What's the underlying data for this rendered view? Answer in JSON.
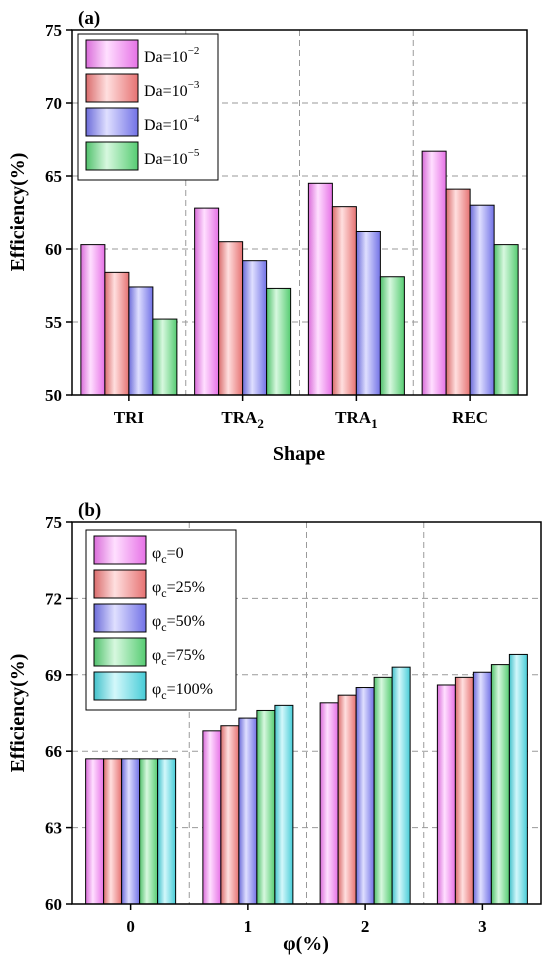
{
  "chart_data": [
    {
      "type": "bar",
      "panel_label": "(a)",
      "categories": [
        "TRI",
        "TRA2",
        "TRA1",
        "REC"
      ],
      "category_labels": [
        {
          "base": "TRI",
          "sub": ""
        },
        {
          "base": "TRA",
          "sub": "2"
        },
        {
          "base": "TRA",
          "sub": "1"
        },
        {
          "base": "REC",
          "sub": ""
        }
      ],
      "series": [
        {
          "name": "Da=10^-2",
          "label_base": "Da=10",
          "label_exp": "−2",
          "color": "#ff7fff",
          "values": [
            60.3,
            62.8,
            64.5,
            66.7
          ]
        },
        {
          "name": "Da=10^-3",
          "label_base": "Da=10",
          "label_exp": "−3",
          "color": "#ff7f7f",
          "values": [
            58.4,
            60.5,
            62.9,
            64.1
          ]
        },
        {
          "name": "Da=10^-4",
          "label_base": "Da=10",
          "label_exp": "−4",
          "color": "#7f7fff",
          "values": [
            57.4,
            59.2,
            61.2,
            63.0
          ]
        },
        {
          "name": "Da=10^-5",
          "label_base": "Da=10",
          "label_exp": "−5",
          "color": "#5fe37f",
          "values": [
            55.2,
            57.3,
            58.1,
            60.3
          ]
        }
      ],
      "xlabel": "Shape",
      "ylabel": "Efficiency(%)",
      "ylim": [
        50,
        75
      ],
      "yticks": [
        50,
        55,
        60,
        65,
        70,
        75
      ],
      "grid": true,
      "legend_position": "top-left"
    },
    {
      "type": "bar",
      "panel_label": "(b)",
      "categories": [
        "0",
        "1",
        "2",
        "3"
      ],
      "category_labels": [
        {
          "base": "0",
          "sub": ""
        },
        {
          "base": "1",
          "sub": ""
        },
        {
          "base": "2",
          "sub": ""
        },
        {
          "base": "3",
          "sub": ""
        }
      ],
      "series": [
        {
          "name": "φc=0",
          "label_base": "φ",
          "label_sub": "c",
          "label_rest": "=0",
          "color": "#ff7fff",
          "values": [
            65.7,
            66.8,
            67.9,
            68.6
          ]
        },
        {
          "name": "φc=25%",
          "label_base": "φ",
          "label_sub": "c",
          "label_rest": "=25%",
          "color": "#ff7f7f",
          "values": [
            65.7,
            67.0,
            68.2,
            68.9
          ]
        },
        {
          "name": "φc=50%",
          "label_base": "φ",
          "label_sub": "c",
          "label_rest": "=50%",
          "color": "#7f7fff",
          "values": [
            65.7,
            67.3,
            68.5,
            69.1
          ]
        },
        {
          "name": "φc=75%",
          "label_base": "φ",
          "label_sub": "c",
          "label_rest": "=75%",
          "color": "#5fe37f",
          "values": [
            65.7,
            67.6,
            68.9,
            69.4
          ]
        },
        {
          "name": "φc=100%",
          "label_base": "φ",
          "label_sub": "c",
          "label_rest": "=100%",
          "color": "#4fe3ef",
          "values": [
            65.7,
            67.8,
            69.3,
            69.8
          ]
        }
      ],
      "xlabel": "φ(%)",
      "ylabel": "Efficiency(%)",
      "ylim": [
        60,
        75
      ],
      "yticks": [
        60,
        63,
        66,
        69,
        72,
        75
      ],
      "grid": true,
      "legend_position": "top-left"
    }
  ]
}
